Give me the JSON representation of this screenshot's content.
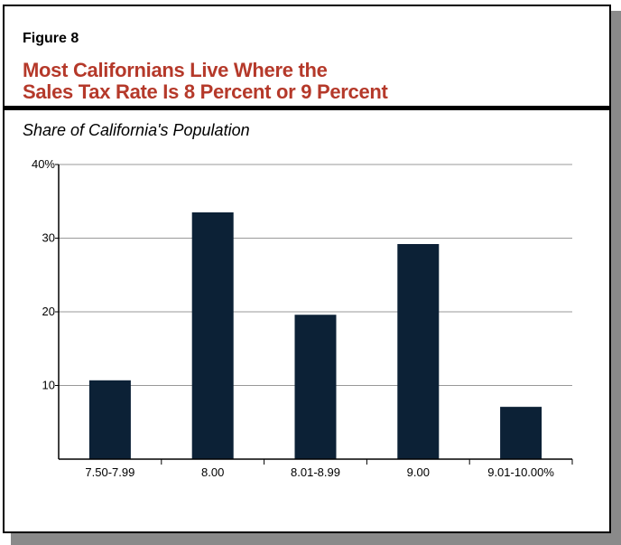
{
  "figure_label": "Figure 8",
  "title_line1": "Most Californians Live Where the",
  "title_line2": "Sales Tax Rate Is 8 Percent or 9 Percent",
  "chart_data": {
    "type": "bar",
    "title": "Most Californians Live Where the Sales Tax Rate Is 8 Percent or 9 Percent",
    "ylabel": "Share of California's Population",
    "categories": [
      "7.50-7.99",
      "8.00",
      "8.01-8.99",
      "9.00",
      "9.01-10.00%"
    ],
    "values": [
      10.7,
      33.5,
      19.6,
      29.2,
      7.1
    ],
    "ylim": [
      0,
      40
    ],
    "yticks": [
      {
        "v": 10,
        "label": "10"
      },
      {
        "v": 20,
        "label": "20"
      },
      {
        "v": 30,
        "label": "30"
      },
      {
        "v": 40,
        "label": "40%"
      }
    ],
    "grid": true,
    "bar_color": "#0c2136",
    "title_color": "#b5392a"
  }
}
